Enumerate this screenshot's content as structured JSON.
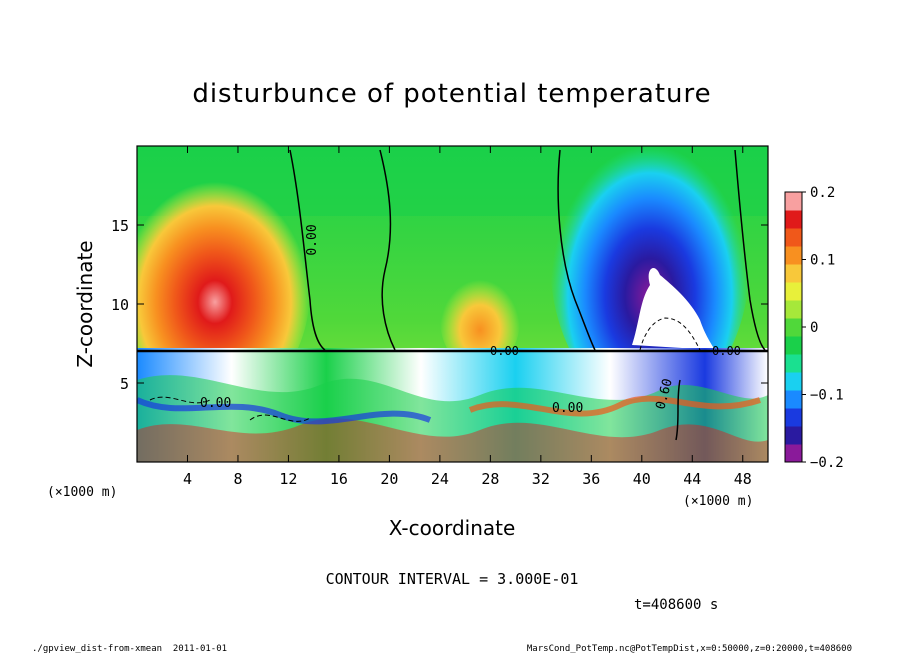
{
  "chart_data": {
    "type": "heatmap",
    "title": "disturbunce of potential temperature",
    "xlabel": "X-coordinate",
    "ylabel": "Z-coordinate",
    "x_unit_label": "(×1000 m)",
    "z_unit_label": "(×1000 m)",
    "xlim": [
      0,
      50
    ],
    "zlim": [
      0,
      20
    ],
    "x_ticks": [
      4,
      8,
      12,
      16,
      20,
      24,
      28,
      32,
      36,
      40,
      44,
      48
    ],
    "z_ticks": [
      5,
      10,
      15
    ],
    "colorbar": {
      "range": [
        -0.2,
        0.2
      ],
      "ticks": [
        {
          "value": 0.2,
          "label": "0.2"
        },
        {
          "value": 0.1,
          "label": "0.1"
        },
        {
          "value": 0,
          "label": "0"
        },
        {
          "value": -0.1,
          "label": "−0.1"
        },
        {
          "value": -0.2,
          "label": "−0.2"
        }
      ],
      "colors": [
        "#8a1a9a",
        "#2a1aa0",
        "#1a3ae0",
        "#1a8aff",
        "#1ad0f0",
        "#1ae090",
        "#1ad04a",
        "#50d83a",
        "#a6e83a",
        "#e8f03a",
        "#f8c83a",
        "#f89020",
        "#f0581a",
        "#e01a1a",
        "#f8a0a0"
      ]
    },
    "contour_labels": [
      "0.00",
      "0.00",
      "0.00",
      "0.00",
      "0.00",
      "0.60"
    ],
    "contour_interval_text": "CONTOUR INTERVAL = 3.000E-01",
    "time_text": "t=408600 s",
    "footer_left": "./gpview_dist-from-xmean  2011-01-01",
    "footer_right": "MarsCond_PotTemp.nc@PotTempDist,x=0:50000,z=0:20000,t=408600"
  }
}
